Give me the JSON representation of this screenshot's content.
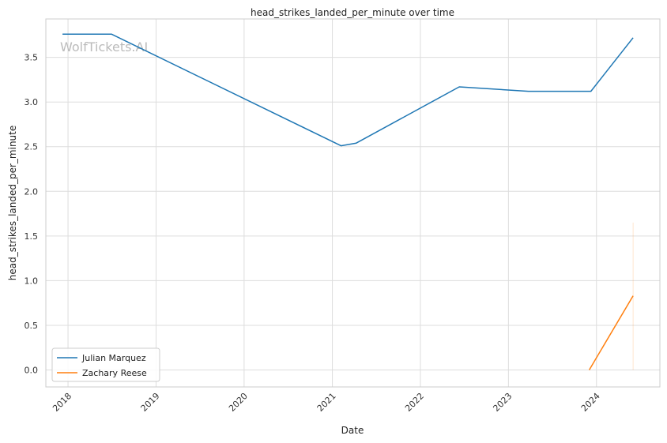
{
  "chart_data": {
    "type": "line",
    "title": "head_strikes_landed_per_minute over time",
    "xlabel": "Date",
    "ylabel": "head_strikes_landed_per_minute",
    "x_axis": "date",
    "xlim": [
      "2017-10-01",
      "2024-09-20"
    ],
    "ylim": [
      -0.19,
      3.93
    ],
    "x_ticks": [
      "2018-01-01",
      "2019-01-01",
      "2020-01-01",
      "2021-01-01",
      "2022-01-01",
      "2023-01-01",
      "2024-01-01"
    ],
    "x_tick_labels": [
      "2018",
      "2019",
      "2020",
      "2021",
      "2022",
      "2023",
      "2024"
    ],
    "y_ticks": [
      0.0,
      0.5,
      1.0,
      1.5,
      2.0,
      2.5,
      3.0,
      3.5
    ],
    "y_tick_labels": [
      "0.0",
      "0.5",
      "1.0",
      "1.5",
      "2.0",
      "2.5",
      "3.0",
      "3.5"
    ],
    "grid": true,
    "legend_position": "lower-left",
    "watermark": "WolfTickets.AI",
    "series": [
      {
        "name": "Julian Marquez",
        "color": "#1f77b4",
        "x": [
          "2017-12-09",
          "2018-06-30",
          "2021-02-06",
          "2021-04-10",
          "2022-06-11",
          "2023-03-25",
          "2023-12-09",
          "2024-06-01"
        ],
        "y": [
          3.76,
          3.76,
          2.51,
          2.54,
          3.17,
          3.12,
          3.12,
          3.72
        ]
      },
      {
        "name": "Zachary Reese",
        "color": "#ff7f0e",
        "x": [
          "2023-12-02",
          "2024-06-01"
        ],
        "y": [
          0.0,
          0.83
        ],
        "band": {
          "x": "2024-06-01",
          "low": 0.0,
          "high": 1.65
        }
      }
    ]
  }
}
